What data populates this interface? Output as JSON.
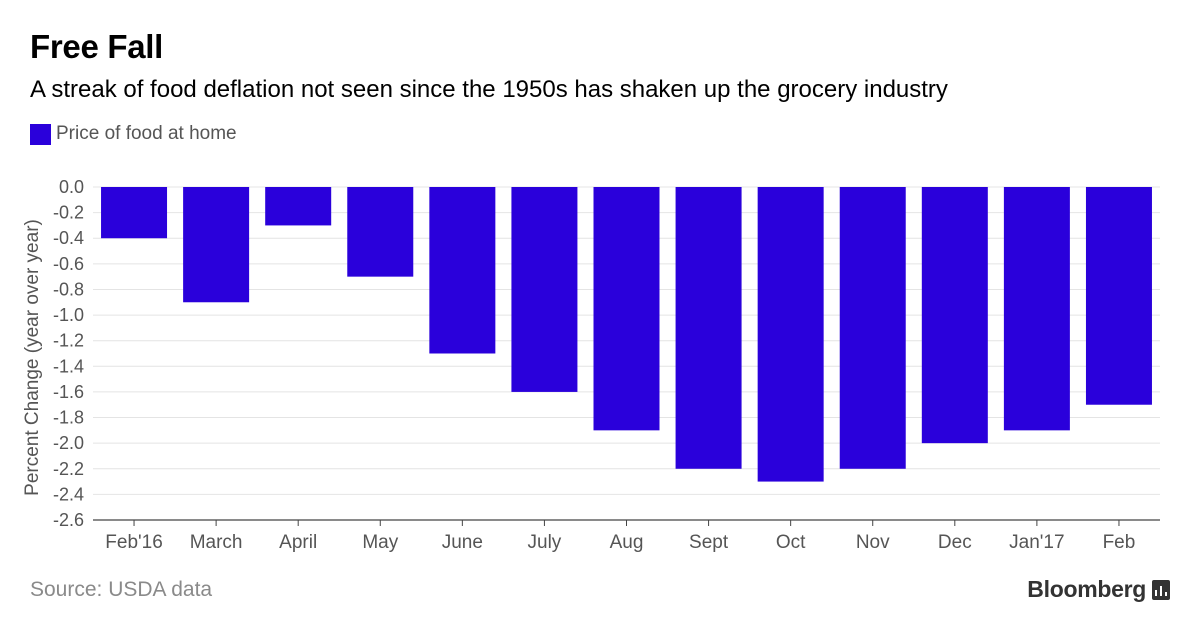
{
  "title": "Free Fall",
  "subtitle": "A streak of food deflation not seen since the 1950s has shaken up the grocery industry",
  "source": "Source: USDA data",
  "brand": "Bloomberg",
  "colors": {
    "bar": "#2a00db",
    "grid": "#e4e4e4",
    "axis": "#444444",
    "tick_text": "#555555"
  },
  "chart_data": {
    "type": "bar",
    "categories": [
      "Feb'16",
      "March",
      "April",
      "May",
      "June",
      "July",
      "Aug",
      "Sept",
      "Oct",
      "Nov",
      "Dec",
      "Jan'17",
      "Feb"
    ],
    "series": [
      {
        "name": "Price of food at home",
        "values": [
          -0.4,
          -0.9,
          -0.3,
          -0.7,
          -1.3,
          -1.6,
          -1.9,
          -2.2,
          -2.3,
          -2.2,
          -2.0,
          -1.9,
          -1.7
        ]
      }
    ],
    "ylabel": "Percent Change (year over year)",
    "xlabel": "",
    "ylim": [
      -2.6,
      0.0
    ],
    "yticks": [
      "0.0",
      "-0.2",
      "-0.4",
      "-0.6",
      "-0.8",
      "-1.0",
      "-1.2",
      "-1.4",
      "-1.6",
      "-1.8",
      "-2.0",
      "-2.2",
      "-2.4",
      "-2.6"
    ],
    "grid": true,
    "legend_position": "top-left"
  }
}
